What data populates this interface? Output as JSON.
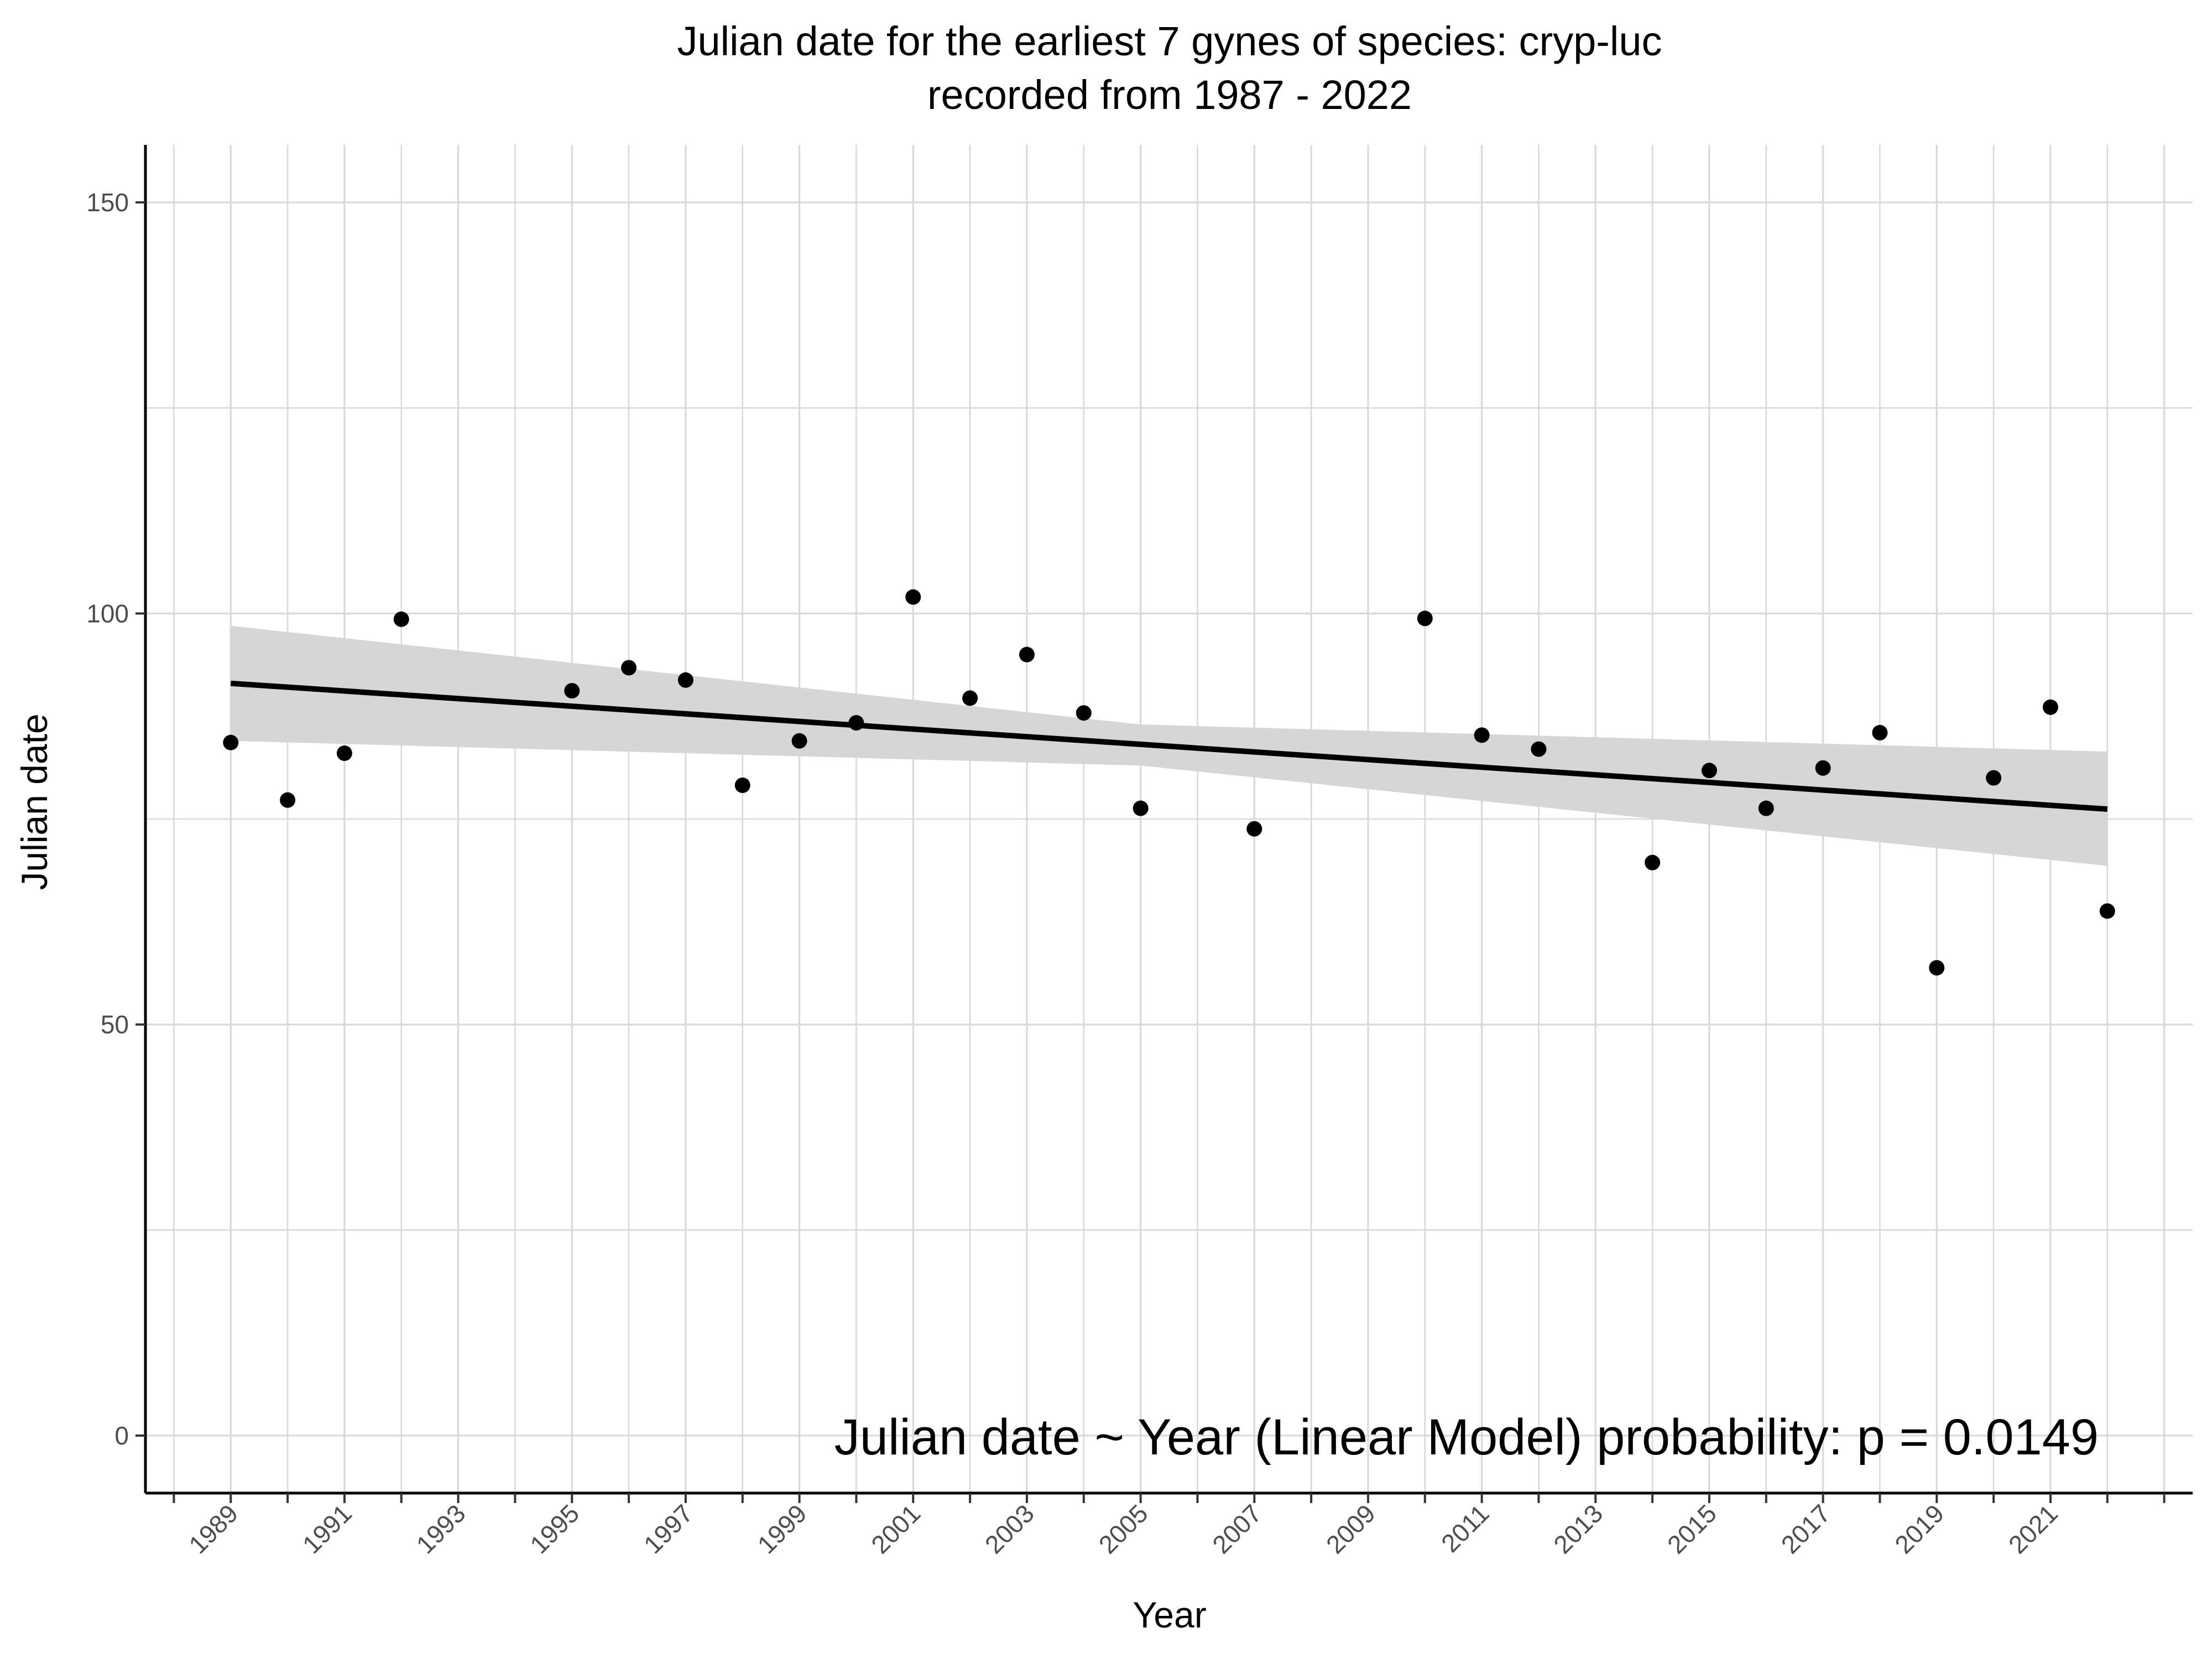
{
  "chart_data": {
    "type": "scatter",
    "title": "Julian date for the earliest 7 gynes of species: cryp-luc",
    "subtitle": "recorded from 1987 - 2022",
    "xlabel": "Year",
    "ylabel": "Julian date",
    "xlim": [
      1987.5,
      2023.5
    ],
    "ylim": [
      -7,
      157
    ],
    "x_ticks": [
      "1989",
      "1991",
      "1993",
      "1995",
      "1997",
      "1999",
      "2001",
      "2003",
      "2005",
      "2007",
      "2009",
      "2011",
      "2013",
      "2015",
      "2017",
      "2019",
      "2021"
    ],
    "y_ticks": [
      "0",
      "50",
      "100",
      "150"
    ],
    "grid": true,
    "annotation": "Julian date ~ Year (Linear Model) probability: p = 0.0149",
    "points": [
      {
        "x": 1989,
        "y": 84.3
      },
      {
        "x": 1990,
        "y": 77.3
      },
      {
        "x": 1991,
        "y": 83.0
      },
      {
        "x": 1992,
        "y": 99.3
      },
      {
        "x": 1995,
        "y": 90.6
      },
      {
        "x": 1996,
        "y": 93.4
      },
      {
        "x": 1997,
        "y": 91.9
      },
      {
        "x": 1998,
        "y": 79.1
      },
      {
        "x": 1999,
        "y": 84.5
      },
      {
        "x": 2000,
        "y": 86.7
      },
      {
        "x": 2001,
        "y": 102.0
      },
      {
        "x": 2002,
        "y": 89.7
      },
      {
        "x": 2003,
        "y": 95.0
      },
      {
        "x": 2004,
        "y": 87.9
      },
      {
        "x": 2005,
        "y": 76.3
      },
      {
        "x": 2007,
        "y": 73.8
      },
      {
        "x": 2010,
        "y": 99.4
      },
      {
        "x": 2011,
        "y": 85.2
      },
      {
        "x": 2012,
        "y": 83.5
      },
      {
        "x": 2014,
        "y": 69.7
      },
      {
        "x": 2015,
        "y": 80.9
      },
      {
        "x": 2016,
        "y": 76.3
      },
      {
        "x": 2017,
        "y": 81.2
      },
      {
        "x": 2018,
        "y": 85.5
      },
      {
        "x": 2019,
        "y": 56.9
      },
      {
        "x": 2020,
        "y": 80.0
      },
      {
        "x": 2021,
        "y": 88.6
      },
      {
        "x": 2022,
        "y": 63.8
      }
    ],
    "fit_line": [
      {
        "x": 1989,
        "y": 91.5
      },
      {
        "x": 2022,
        "y": 76.2
      }
    ],
    "confidence_band": {
      "upper": [
        {
          "x": 1989,
          "y": 98.5
        },
        {
          "x": 2005,
          "y": 86.5
        },
        {
          "x": 2022,
          "y": 83.2
        }
      ],
      "lower": [
        {
          "x": 1989,
          "y": 84.5
        },
        {
          "x": 2005,
          "y": 81.5
        },
        {
          "x": 2022,
          "y": 69.3
        }
      ]
    },
    "colors": {
      "points": "#000000",
      "line": "#000000",
      "band": "#d6d6d6",
      "grid": "#d9d9d9",
      "axis": "#000000"
    }
  }
}
